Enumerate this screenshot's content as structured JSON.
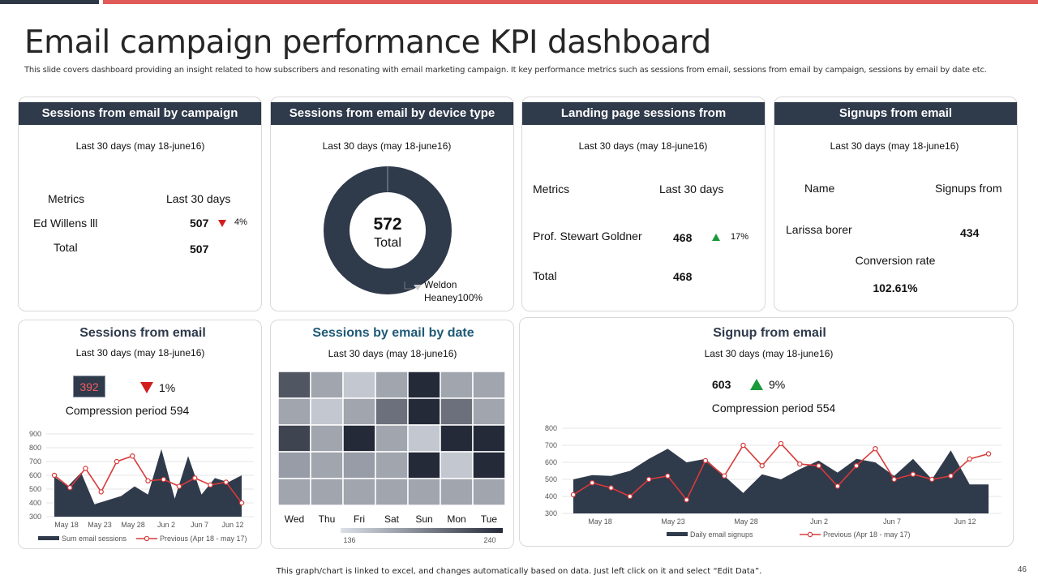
{
  "title": "Email campaign performance KPI dashboard",
  "subtitle": "This slide covers dashboard providing an insight related to how subscribers and resonating with email marketing campaign. It key performance metrics such as sessions from email, sessions from email by campaign, sessions by email by date etc.",
  "period": "Last 30 days (may 18-june16)",
  "colors": {
    "navy": "#2f3a4b",
    "accent_red": "#e05a5a",
    "up_green": "#1a9a3a",
    "down_red": "#d11f1f"
  },
  "campaign": {
    "header": "Sessions from email by campaign",
    "col_metrics": "Metrics",
    "col_last30": "Last 30 days",
    "row_name": "Ed Willens lll",
    "row_value": "507",
    "row_change": "4%",
    "total_label": "Total",
    "total_value": "507"
  },
  "device": {
    "header": "Sessions from email by device type",
    "total_value": "572",
    "total_label": "Total",
    "legend_line1": "Weldon",
    "legend_line2": "Heaney100%"
  },
  "landing": {
    "header": "Landing page sessions from",
    "col_metrics": "Metrics",
    "col_last30": "Last 30 days",
    "row_name": "Prof. Stewart Goldner",
    "row_value": "468",
    "row_change": "17%",
    "total_label": "Total",
    "total_value": "468"
  },
  "signups": {
    "header": "Signups from email",
    "col_name": "Name",
    "col_signups": "Signups from",
    "row_name": "Larissa borer",
    "row_value": "434",
    "conversion_label": "Conversion rate",
    "conversion_value": "102.61%"
  },
  "sessions_email": {
    "heading": "Sessions  from email",
    "badge_value": "392",
    "change": "1%",
    "compression": "Compression period 594",
    "legend_current": "Sum email sessions",
    "legend_previous": "Previous (Apr 18 - may 17)"
  },
  "by_date": {
    "heading": "Sessions  by email by date",
    "days": [
      "Wed",
      "Thu",
      "Fri",
      "Sat",
      "Sun",
      "Mon",
      "Tue"
    ],
    "scale_min": "136",
    "scale_max": "240"
  },
  "signup_email": {
    "heading": "Signup from email",
    "value": "603",
    "change": "9%",
    "compression": "Compression period 554",
    "legend_current": "Daily email signups",
    "legend_previous": "Previous (Apr 18 - may 17)"
  },
  "footer": "This graph/chart is linked to excel, and changes automatically based on data. Just left click on it and select “Edit Data”.",
  "page_number": "46",
  "chart_data": [
    {
      "type": "area",
      "ylim": [
        300,
        900
      ],
      "yticks": [
        300,
        400,
        500,
        600,
        700,
        800,
        900
      ],
      "xtick_labels": [
        "May 18",
        "May 23",
        "May 28",
        "Jun 2",
        "Jun 7",
        "Jun 12"
      ],
      "series": [
        {
          "name": "Sum email sessions",
          "values": [
            590,
            520,
            620,
            390,
            420,
            450,
            520,
            460,
            790,
            430,
            740,
            460,
            580,
            550,
            600
          ]
        },
        {
          "name": "Previous (Apr 18 - may 17)",
          "values": [
            600,
            510,
            650,
            480,
            700,
            740,
            560,
            570,
            520,
            580,
            530,
            550,
            400
          ]
        }
      ]
    },
    {
      "type": "heatmap",
      "columns": [
        "Wed",
        "Thu",
        "Fri",
        "Sat",
        "Sun",
        "Mon",
        "Tue"
      ],
      "range": [
        136,
        240
      ],
      "values": [
        [
          215,
          170,
          150,
          170,
          240,
          170,
          170
        ],
        [
          170,
          150,
          170,
          200,
          240,
          200,
          170
        ],
        [
          225,
          170,
          240,
          170,
          150,
          240,
          240
        ],
        [
          175,
          170,
          175,
          170,
          240,
          150,
          240
        ],
        [
          170,
          170,
          170,
          170,
          170,
          170,
          170
        ]
      ]
    },
    {
      "type": "area",
      "ylim": [
        300,
        800
      ],
      "yticks": [
        300,
        400,
        500,
        600,
        700,
        800
      ],
      "xtick_labels": [
        "May 18",
        "May 23",
        "May 28",
        "Jun 2",
        "Jun 7",
        "Jun 12"
      ],
      "series": [
        {
          "name": "Daily email signups",
          "values": [
            500,
            525,
            520,
            550,
            620,
            680,
            600,
            620,
            520,
            420,
            530,
            500,
            560,
            610,
            540,
            620,
            600,
            520,
            620,
            500,
            670,
            470,
            470
          ]
        },
        {
          "name": "Previous (Apr 18 - may 17)",
          "values": [
            410,
            480,
            450,
            400,
            500,
            520,
            380,
            610,
            520,
            700,
            580,
            710,
            590,
            580,
            460,
            580,
            680,
            500,
            530,
            500,
            520,
            620,
            650
          ]
        }
      ]
    }
  ]
}
